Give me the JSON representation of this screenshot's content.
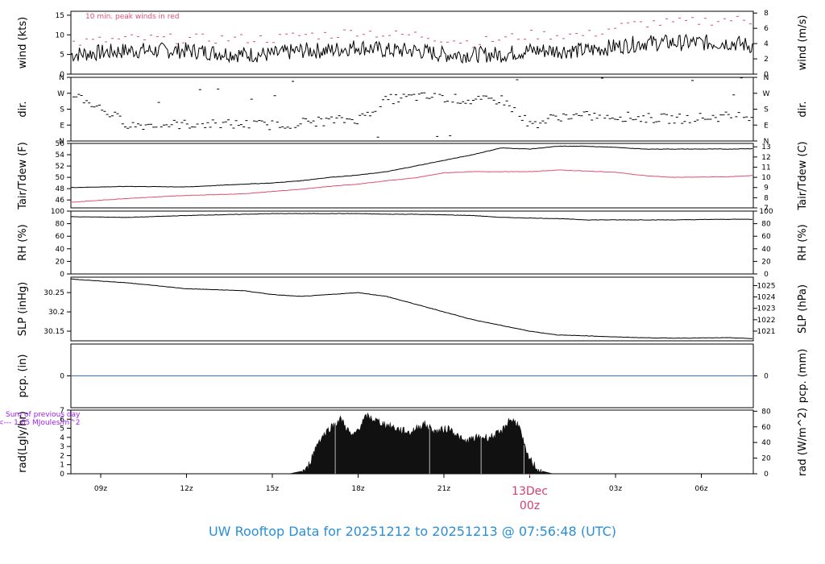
{
  "chart_data": {
    "type": "line",
    "title": "UW Rooftop Data for 20251212  to  20251213 @ 07:56:48  (UTC)",
    "x_ticks": [
      "09z",
      "12z",
      "15z",
      "18z",
      "21z",
      "00z",
      "03z",
      "06z"
    ],
    "date_label": "13Dec",
    "x_hours": [
      8,
      10,
      12,
      14,
      15,
      16,
      17,
      18,
      19,
      20,
      21,
      22,
      23,
      24,
      25,
      26,
      27,
      28,
      29,
      31,
      32
    ],
    "panels": [
      {
        "id": "wind",
        "left_label": "wind (kts)",
        "right_label": "wind (m/s)",
        "left_ticks": [
          0,
          5,
          10,
          15
        ],
        "right_ticks": [
          0,
          2,
          4,
          6,
          8
        ],
        "ylim": [
          0,
          16
        ],
        "note": "10 min. peak winds in red",
        "series": [
          {
            "name": "wind speed",
            "color": "#000000",
            "style": "noisy-line",
            "values": [
              5,
              6,
              6,
              5,
              5,
              6,
              6,
              7,
              6,
              6,
              5,
              5,
              5,
              6,
              6,
              6,
              7,
              8,
              8,
              8,
              7
            ]
          },
          {
            "name": "10 min. peak winds",
            "color": "#e05070",
            "style": "dashes",
            "values": [
              8,
              9,
              9,
              9,
              9,
              10,
              10,
              11,
              10,
              10,
              9,
              8,
              9,
              10,
              10,
              10,
              12,
              13,
              13,
              14,
              13
            ]
          }
        ]
      },
      {
        "id": "dir",
        "left_label": "dir.",
        "right_label": "dir.",
        "left_ticks": [
          "N",
          "E",
          "S",
          "W",
          "N"
        ],
        "right_ticks": [
          "N",
          "E",
          "S",
          "W",
          "N"
        ],
        "ylim": [
          0,
          360
        ],
        "series": [
          {
            "name": "wind direction (deg)",
            "color": "#000000",
            "style": "dashes",
            "values": [
              270,
              90,
              95,
              95,
              90,
              105,
              115,
              125,
              235,
              250,
              245,
              225,
              235,
              90,
              140,
              140,
              140,
              130,
              125,
              140,
              145
            ]
          }
        ]
      },
      {
        "id": "temp",
        "left_label": "Tair/Tdew (F)",
        "right_label": "Tair/Tdew (C)",
        "left_ticks": [
          46,
          48,
          50,
          52,
          54,
          56
        ],
        "right_ticks": [
          7,
          8,
          9,
          10,
          11,
          12,
          13
        ],
        "ylim": [
          44.6,
          56
        ],
        "series": [
          {
            "name": "Tair",
            "color": "#000000",
            "style": "line",
            "values": [
              48.2,
              48.4,
              48.3,
              48.8,
              49.0,
              49.4,
              50.0,
              50.4,
              51.0,
              52.0,
              53.0,
              54.0,
              55.2,
              55.0,
              55.5,
              55.5,
              55.3,
              55.0,
              55.0,
              55.0,
              55.1
            ]
          },
          {
            "name": "Tdew",
            "color": "#e05070",
            "style": "line",
            "values": [
              45.6,
              46.3,
              46.8,
              47.1,
              47.5,
              47.9,
              48.4,
              48.8,
              49.4,
              49.9,
              50.8,
              51.0,
              51.0,
              51.0,
              51.3,
              51.1,
              50.9,
              50.3,
              50.0,
              50.1,
              50.4
            ]
          }
        ]
      },
      {
        "id": "rh",
        "left_label": "RH (%)",
        "right_label": "RH (%)",
        "left_ticks": [
          0,
          20,
          40,
          60,
          80,
          100
        ],
        "right_ticks": [
          0,
          20,
          40,
          60,
          80,
          100
        ],
        "ylim": [
          0,
          100
        ],
        "series": [
          {
            "name": "RH",
            "color": "#000000",
            "style": "line",
            "values": [
              91,
              90,
              93,
              95,
              96,
              96,
              96,
              96,
              95,
              95,
              94,
              93,
              90,
              89,
              88,
              86,
              86,
              86,
              86,
              87,
              87
            ]
          }
        ]
      },
      {
        "id": "slp",
        "left_label": "SLP (inHg)",
        "right_label": "SLP (hPa)",
        "left_ticks": [
          30.15,
          30.2,
          30.25
        ],
        "right_ticks": [
          1021,
          1022,
          1023,
          1024,
          1025
        ],
        "ylim": [
          30.125,
          30.29
        ],
        "series": [
          {
            "name": "SLP",
            "color": "#000000",
            "style": "line",
            "values": [
              30.285,
              30.275,
              30.26,
              30.255,
              30.245,
              30.24,
              30.245,
              30.25,
              30.24,
              30.22,
              30.2,
              30.18,
              30.165,
              30.15,
              30.14,
              30.138,
              30.135,
              30.133,
              30.132,
              30.133,
              30.13
            ]
          }
        ]
      },
      {
        "id": "pcp",
        "left_label": "pcp. (in)",
        "right_label": "pcp. (mm)",
        "left_ticks": [
          0
        ],
        "right_ticks": [
          0
        ],
        "ylim": [
          -1,
          1
        ],
        "series": [
          {
            "name": "precipitation",
            "color": "#3a6fc8",
            "style": "line",
            "values": [
              0,
              0
            ]
          }
        ]
      },
      {
        "id": "rad",
        "left_label": "rad(Lgly/hr)",
        "right_label": "rad (W/m^2)",
        "left_ticks": [
          0,
          1,
          2,
          3,
          4,
          5,
          6,
          7
        ],
        "right_ticks": [
          0,
          20,
          40,
          60,
          80
        ],
        "ylim": [
          0,
          7
        ],
        "note_lines": [
          "Sum of previous day",
          "<--- 1.65 MJoules/m^2"
        ],
        "series": [
          {
            "name": "radiation",
            "color": "#111111",
            "style": "filled-area",
            "x": [
              15.6,
              16.2,
              16.6,
              17.0,
              17.4,
              17.8,
              18.3,
              18.8,
              19.3,
              19.8,
              20.3,
              20.7,
              21.2,
              21.7,
              22.2,
              22.6,
              23.0,
              23.3,
              23.6,
              23.9,
              24.3,
              24.8
            ],
            "values": [
              0,
              0.4,
              3.5,
              5.0,
              6.0,
              4.0,
              6.3,
              5.6,
              5.0,
              4.5,
              5.5,
              4.6,
              5.0,
              3.5,
              4.0,
              4.0,
              4.5,
              6.0,
              5.5,
              2.0,
              0.4,
              0
            ]
          }
        ]
      }
    ]
  }
}
